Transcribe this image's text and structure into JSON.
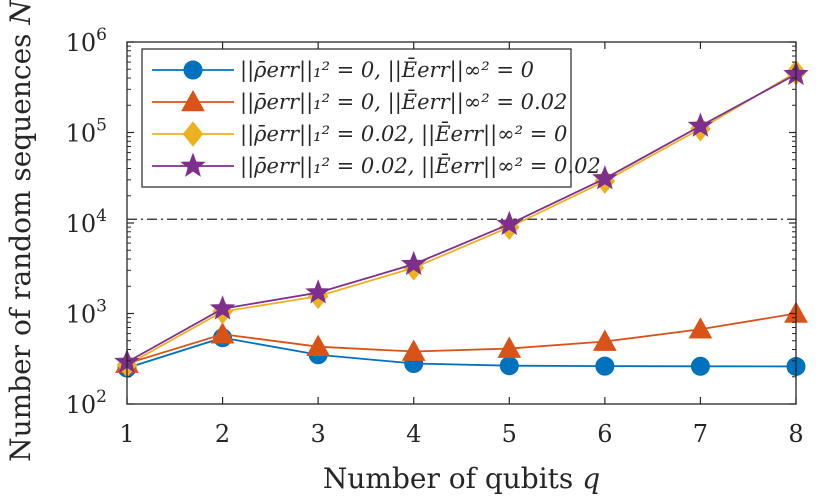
{
  "chart_data": {
    "type": "line",
    "title": "",
    "xlabel": "Number of qubits q",
    "ylabel": "Number of random sequences N",
    "x": [
      1,
      2,
      3,
      4,
      5,
      6,
      7,
      8
    ],
    "xlim": [
      1,
      8
    ],
    "ylim": [
      100,
      1000000
    ],
    "yscale": "log",
    "x_ticks": [
      "1",
      "2",
      "3",
      "4",
      "5",
      "6",
      "7",
      "8"
    ],
    "y_ticks": [
      {
        "base": "10",
        "exp": "2",
        "value": 100
      },
      {
        "base": "10",
        "exp": "3",
        "value": 1000
      },
      {
        "base": "10",
        "exp": "4",
        "value": 10000
      },
      {
        "base": "10",
        "exp": "5",
        "value": 100000
      },
      {
        "base": "10",
        "exp": "6",
        "value": 1000000
      }
    ],
    "reference_line": {
      "value": 11000,
      "style": "dash-dot",
      "color": "#262626"
    },
    "legend_position": "top-left",
    "series": [
      {
        "name": "||ρ̄err||₁² = 0, ||Ēerr||∞² = 0",
        "marker": "circle",
        "color": "#0072BD",
        "values": [
          250,
          540,
          350,
          280,
          265,
          262,
          261,
          260
        ]
      },
      {
        "name": "||ρ̄err||₁² = 0, ||Ēerr||∞² = 0.02",
        "marker": "triangle",
        "color": "#D95319",
        "values": [
          280,
          590,
          430,
          380,
          410,
          490,
          670,
          1000
        ]
      },
      {
        "name": "||ρ̄err||₁² = 0.02, ||Ēerr||∞² = 0",
        "marker": "diamond",
        "color": "#EDB120",
        "values": [
          270,
          1050,
          1550,
          3200,
          9000,
          29000,
          110000,
          460000
        ]
      },
      {
        "name": "||ρ̄err||₁² = 0.02, ||Ēerr||∞² = 0.02",
        "marker": "star",
        "color": "#7E2F8E",
        "values": [
          290,
          1130,
          1700,
          3500,
          9700,
          31000,
          118000,
          440000
        ]
      }
    ]
  }
}
